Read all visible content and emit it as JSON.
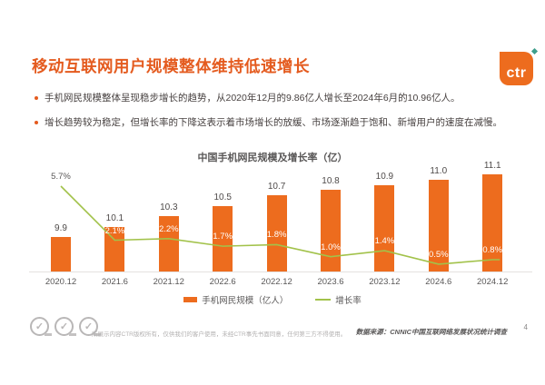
{
  "title": "移动互联网用户规模整体维持低速增长",
  "logo": {
    "text": "ctr"
  },
  "bullets": [
    "手机网民规模整体呈现稳步增长的趋势，从2020年12月的9.86亿人增长至2024年6月的10.96亿人。",
    "增长趋势较为稳定，但增长率的下降这表示着市场增长的放缓、市场逐渐趋于饱和、新增用户的速度在减慢。"
  ],
  "chart_data": {
    "type": "bar",
    "title": "中国手机网民规模及增长率（亿）",
    "categories": [
      "2020.12",
      "2021.6",
      "2021.12",
      "2022.6",
      "2022.12",
      "2023.6",
      "2023.12",
      "2024.6",
      "2024.12"
    ],
    "series": [
      {
        "name": "手机网民规模（亿人）",
        "type": "bar",
        "values": [
          9.9,
          10.1,
          10.3,
          10.5,
          10.7,
          10.8,
          10.9,
          11.0,
          11.1
        ],
        "color": "#ED6C1E"
      },
      {
        "name": "增长率",
        "type": "line",
        "values": [
          5.7,
          2.1,
          2.2,
          1.7,
          1.8,
          1.0,
          1.4,
          0.5,
          0.8
        ],
        "unit": "%",
        "color": "#A2C24A"
      }
    ],
    "value_labels": true,
    "grid": false,
    "legend_position": "bottom",
    "bar_axis_min": 9.24
  },
  "footer": {
    "disclaimer": "所展示内容CTR版权所有，仅供我们的客户使用，未经CTR事先书面同意，任何第三方不得使用。",
    "source": "数据来源：CNNIC中国互联网络发展状况统计调查",
    "page": "4"
  },
  "colors": {
    "accent_orange": "#ED6C1E",
    "title_orange": "#E45B1F",
    "line_green": "#A2C24A",
    "text_dark": "#595757"
  }
}
